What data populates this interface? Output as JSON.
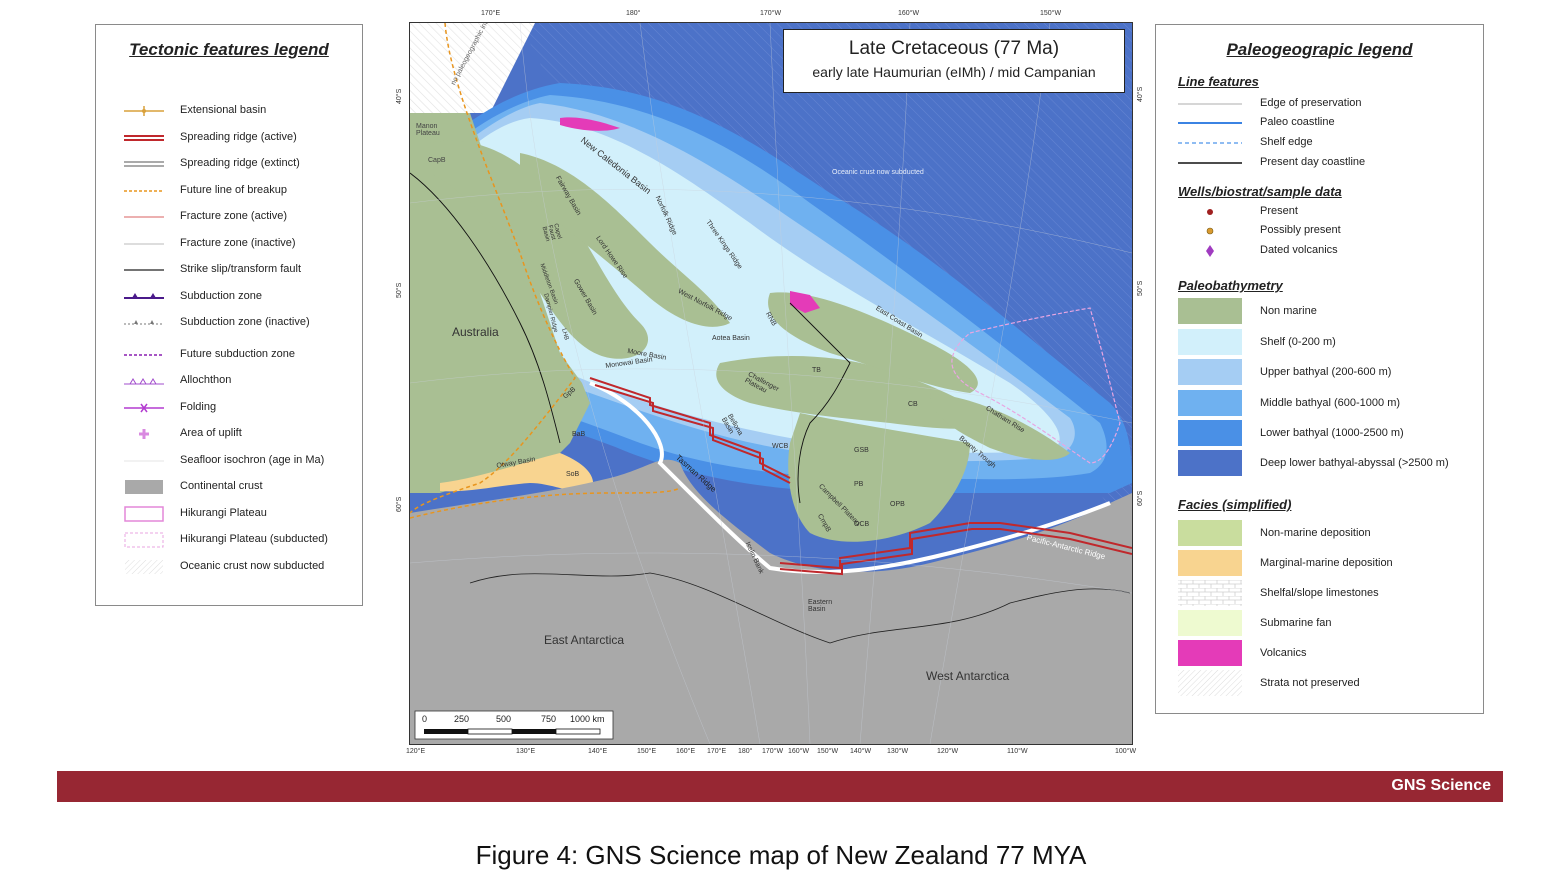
{
  "tectonic_legend": {
    "title": "Tectonic features legend",
    "items": [
      {
        "label": "Extensional basin",
        "icon": "extensional-basin-line"
      },
      {
        "label": "Spreading ridge (active)",
        "icon": "double-red-line"
      },
      {
        "label": "Spreading ridge (extinct)",
        "icon": "double-grey-line"
      },
      {
        "label": "Future line of breakup",
        "icon": "orange-dashed-line"
      },
      {
        "label": "Fracture zone (active)",
        "icon": "red-thin-line"
      },
      {
        "label": "Fracture zone (inactive)",
        "icon": "grey-thin-line"
      },
      {
        "label": "Strike slip/transform fault",
        "icon": "black-line"
      },
      {
        "label": "Subduction zone",
        "icon": "purple-toothed-line"
      },
      {
        "label": "Subduction zone (inactive)",
        "icon": "grey-toothed-line"
      },
      {
        "label": "Future subduction zone",
        "icon": "purple-dashed-line"
      },
      {
        "label": "Allochthon",
        "icon": "purple-triangle-line"
      },
      {
        "label": "Folding",
        "icon": "purple-fold-line"
      },
      {
        "label": "Area of uplift",
        "icon": "pink-cross"
      },
      {
        "label": "Seafloor isochron (age in Ma)",
        "icon": "faint-line"
      },
      {
        "label": "Continental crust",
        "icon": "grey-box"
      },
      {
        "label": "Hikurangi Plateau",
        "icon": "pink-outline-box"
      },
      {
        "label": "Hikurangi Plateau (subducted)",
        "icon": "pink-dashed-box"
      },
      {
        "label": "Oceanic crust now subducted",
        "icon": "hatched-box"
      }
    ]
  },
  "paleo_legend": {
    "title": "Paleogeograpic legend",
    "line_features": {
      "title": "Line features",
      "items": [
        {
          "label": "Edge of preservation",
          "icon": "grey-line"
        },
        {
          "label": "Paleo coastline",
          "icon": "blue-line"
        },
        {
          "label": "Shelf edge",
          "icon": "blue-dashed-line"
        },
        {
          "label": "Present day coastline",
          "icon": "black-line"
        }
      ]
    },
    "wells": {
      "title": "Wells/biostrat/sample data",
      "items": [
        {
          "label": "Present",
          "icon": "red-dot"
        },
        {
          "label": "Possibly present",
          "icon": "orange-dot"
        },
        {
          "label": "Dated volcanics",
          "icon": "purple-diamond"
        }
      ]
    },
    "bathymetry": {
      "title": "Paleobathymetry",
      "items": [
        {
          "label": "Non marine",
          "color": "#a9bf93"
        },
        {
          "label": "Shelf (0-200 m)",
          "color": "#d2f0fb"
        },
        {
          "label": "Upper bathyal (200-600 m)",
          "color": "#a5cdf3"
        },
        {
          "label": "Middle bathyal (600-1000 m)",
          "color": "#6fb1f0"
        },
        {
          "label": "Lower bathyal (1000-2500 m)",
          "color": "#4a90e6"
        },
        {
          "label": "Deep lower bathyal-abyssal (>2500 m)",
          "color": "#4c72c8"
        }
      ]
    },
    "facies": {
      "title": "Facies (simplified)",
      "items": [
        {
          "label": "Non-marine deposition",
          "color": "#c9dd9e"
        },
        {
          "label": "Marginal-marine deposition",
          "color": "#f8d490"
        },
        {
          "label": "Shelfal/slope limestones",
          "color": "pattern-bricks"
        },
        {
          "label": "Submarine fan",
          "color": "#eefad0"
        },
        {
          "label": "Volcanics",
          "color": "#e43bb8"
        },
        {
          "label": "Strata not preserved",
          "color": "pattern-hatch"
        }
      ]
    }
  },
  "map": {
    "title": "Late Cretaceous (77 Ma)",
    "subtitle": "early late Haumurian (eIMh) / mid Campanian",
    "top_ticks": [
      "170°E",
      "180°",
      "170°W",
      "160°W",
      "150°W"
    ],
    "bottom_ticks": [
      "120°E",
      "130°E",
      "140°E",
      "150°E",
      "160°E",
      "170°E",
      "180°",
      "170°W",
      "160°W",
      "150°W",
      "140°W",
      "130°W",
      "120°W",
      "110°W",
      "100°W"
    ],
    "left_ticks": [
      "40°S",
      "50°S",
      "60°S"
    ],
    "right_ticks": [
      "40°S",
      "50°S",
      "60°S"
    ],
    "labels": {
      "australia": "Australia",
      "east_antarctica": "East Antarctica",
      "west_antarctica": "West Antarctica",
      "oceanic_note": "Oceanic crust now subducted",
      "no_paleo": "no paleogeographic interpretation",
      "manon": "Manon Plateau",
      "capb": "CapB",
      "new_caledonia": "New Caledonia Basin",
      "fairway": "Fairway Basin",
      "norfolk": "Norfolk Ridge",
      "three_kings": "Three Kings Ridge",
      "lord_howe": "Lord Howe Rise",
      "gower": "Gower Basin",
      "west_norfolk": "West Norfolk Ridge",
      "rnb": "RNB",
      "east_coast": "East Coast Basin",
      "aotea": "Aotea Basin",
      "moore": "Moore Basin",
      "monowai": "Monowai Basin",
      "challenger": "Challenger Plateau",
      "tb": "TB",
      "cb": "CB",
      "chatham": "Chatham Rise",
      "bounty": "Bounty Trough",
      "gsb": "GSB",
      "wcb": "WCB",
      "pb": "PB",
      "opb": "OPB",
      "ocb": "OCB",
      "campbell": "Campbell Plateau",
      "bellona": "Bellona Basin",
      "tasman": "Tasman Ridge",
      "pacific_antarctic": "Pacific-Antarctic Ridge",
      "gpb": "GpB",
      "bab": "BaB",
      "otway": "Otway Basin",
      "sob": "SoB",
      "iselin": "Iselin Bank",
      "eastern_basin": "Eastern Basin",
      "capel": "Capel Faust Basin",
      "middleton": "Middleton Basin",
      "dampier": "Dampier Ridge",
      "lhb": "LHB",
      "crmpb": "CmpB"
    },
    "scale": {
      "ticks": [
        "0",
        "250",
        "500",
        "750",
        "1000 km"
      ]
    }
  },
  "footer": {
    "brand": "GNS Science"
  },
  "caption": "Figure 4: GNS Science map of New Zealand 77 MYA"
}
